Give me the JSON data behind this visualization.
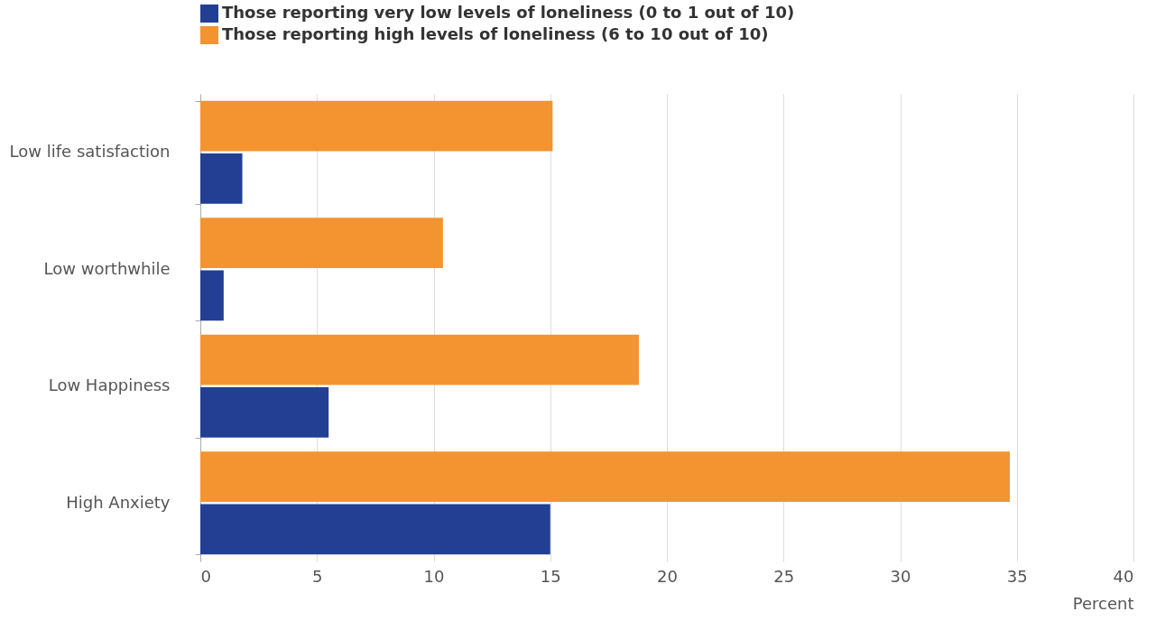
{
  "chart_data": {
    "type": "bar",
    "orientation": "horizontal",
    "categories": [
      "Low life satisfaction",
      "Low worthwhile",
      "Low Happiness",
      "High Anxiety"
    ],
    "series": [
      {
        "name": "Those reporting very low levels of loneliness (0 to 1 out of 10)",
        "color": "#233f94",
        "values": [
          1.8,
          1.0,
          5.5,
          15.0
        ]
      },
      {
        "name": "Those reporting high levels of loneliness (6 to 10 out of 10)",
        "color": "#f39431",
        "values": [
          15.1,
          10.4,
          18.8,
          34.7
        ]
      }
    ],
    "xlim": [
      0,
      40
    ],
    "xticks": [
      0,
      5,
      10,
      15,
      20,
      25,
      30,
      35,
      40
    ],
    "xlabel": "Percent",
    "grid": "x",
    "legend": "top"
  }
}
